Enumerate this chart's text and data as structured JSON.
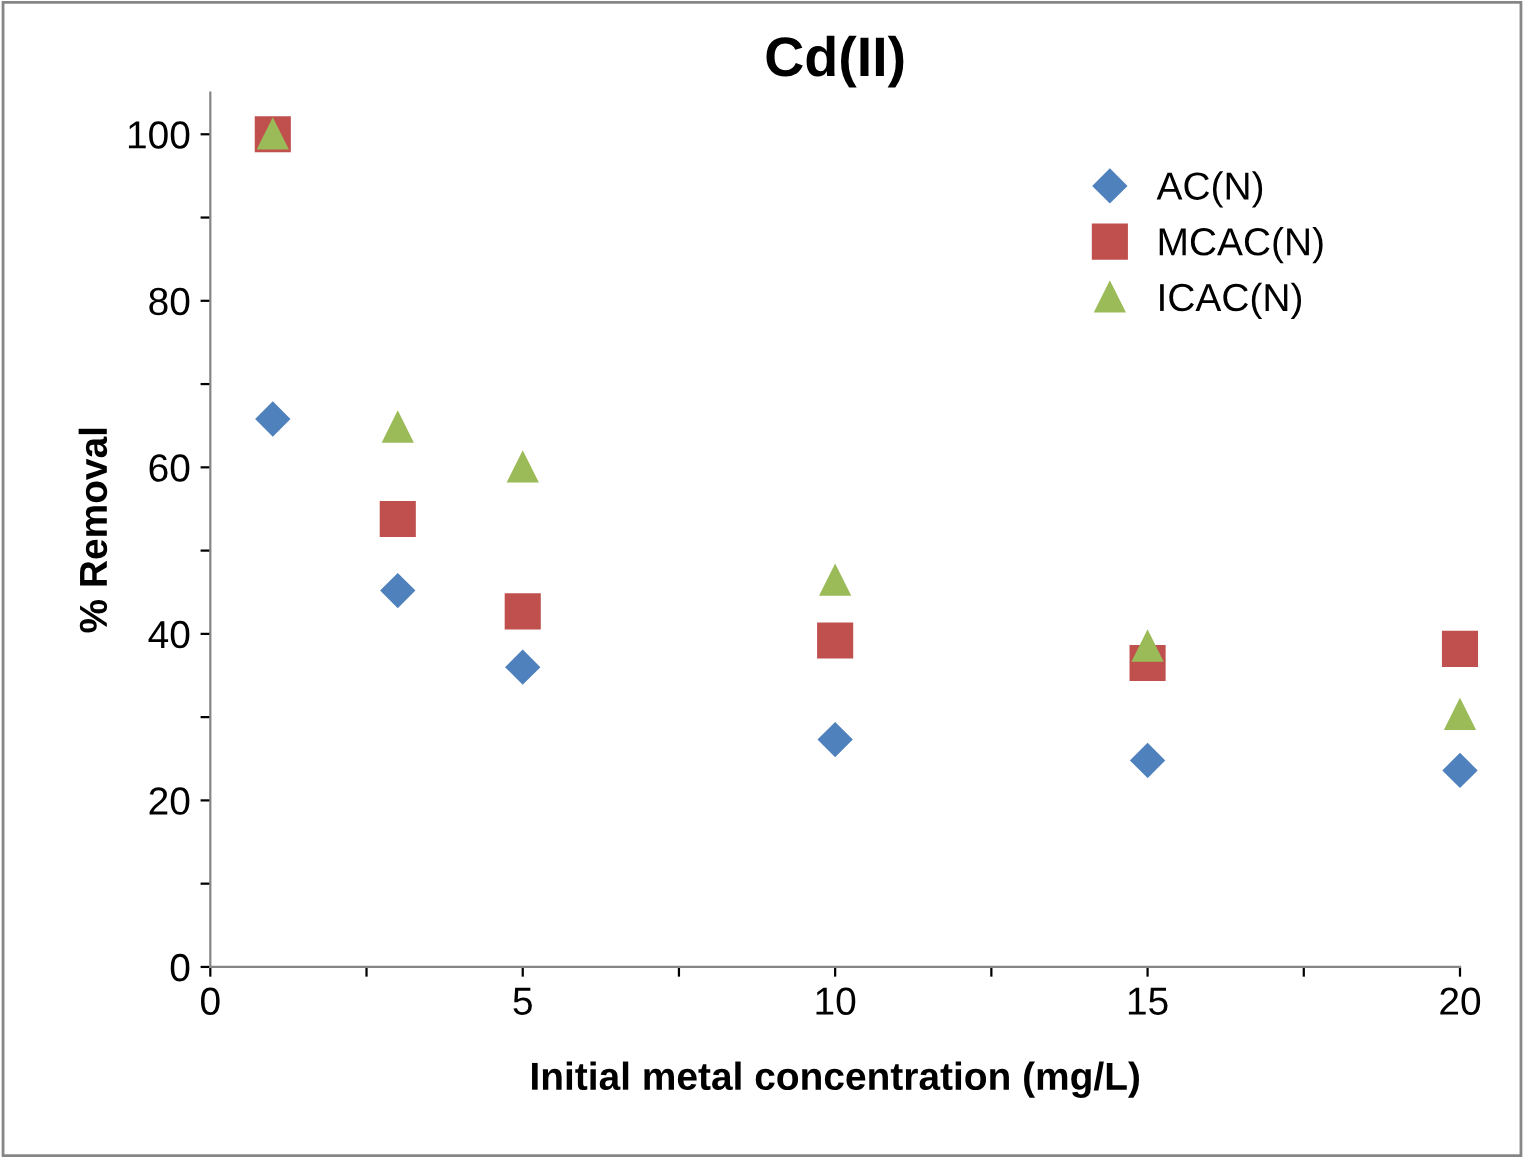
{
  "chart_data": {
    "type": "scatter",
    "title": "Cd(II)",
    "xlabel": "Initial metal concentration (mg/L)",
    "ylabel": "% Removal",
    "xlim": [
      0,
      20
    ],
    "ylim": [
      0,
      105
    ],
    "xticks": [
      0,
      {
        "value": 2.5,
        "label": null
      },
      5,
      {
        "value": 7.5,
        "label": null
      },
      10,
      {
        "value": 12.5,
        "label": null
      },
      15,
      {
        "value": 17.5,
        "label": null
      },
      20
    ],
    "yticks": [
      0,
      {
        "value": 10,
        "label": null
      },
      20,
      {
        "value": 30,
        "label": null
      },
      40,
      {
        "value": 50,
        "label": null
      },
      60,
      {
        "value": 70,
        "label": null
      },
      80,
      {
        "value": 90,
        "label": null
      },
      100
    ],
    "x": [
      1,
      3,
      5,
      10,
      15,
      20
    ],
    "series": [
      {
        "name": "AC(N)",
        "color": "#4f81bd",
        "marker": "diamond",
        "values": [
          65.8,
          45.2,
          36,
          27.3,
          24.8,
          23.6
        ]
      },
      {
        "name": "MCAC(N)",
        "color": "#c0504d",
        "marker": "square",
        "values": [
          100,
          53.8,
          42.7,
          39.2,
          36.5,
          38.2
        ]
      },
      {
        "name": "ICAC(N)",
        "color": "#9bbb59",
        "marker": "triangle",
        "values": [
          100,
          64.8,
          60,
          46.4,
          38.5,
          30.3
        ]
      }
    ],
    "grid": false,
    "legend": "top right"
  }
}
